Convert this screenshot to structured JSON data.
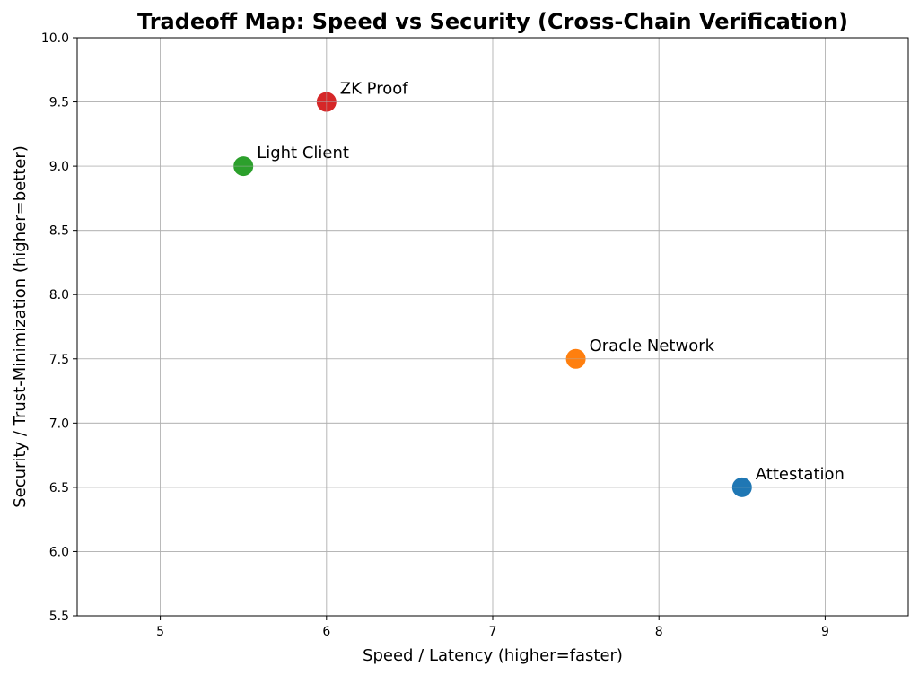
{
  "chart_data": {
    "type": "scatter",
    "title": "Tradeoff Map: Speed vs Security (Cross-Chain Verification)",
    "xlabel": "Speed / Latency (higher=faster)",
    "ylabel": "Security / Trust-Minimization (higher=better)",
    "xlim": [
      4.5,
      9.5
    ],
    "ylim": [
      5.5,
      10.0
    ],
    "xticks": [
      "5",
      "6",
      "7",
      "8",
      "9"
    ],
    "yticks": [
      "5.5",
      "6.0",
      "6.5",
      "7.0",
      "7.5",
      "8.0",
      "8.5",
      "9.0",
      "9.5",
      "10.0"
    ],
    "grid": true,
    "points": [
      {
        "label": "Attestation",
        "x": 8.5,
        "y": 6.5,
        "color": "#1f77b4"
      },
      {
        "label": "Oracle Network",
        "x": 7.5,
        "y": 7.5,
        "color": "#ff7f0e"
      },
      {
        "label": "Light Client",
        "x": 5.5,
        "y": 9.0,
        "color": "#2ca02c"
      },
      {
        "label": "ZK Proof",
        "x": 6.0,
        "y": 9.5,
        "color": "#d62728"
      }
    ]
  }
}
